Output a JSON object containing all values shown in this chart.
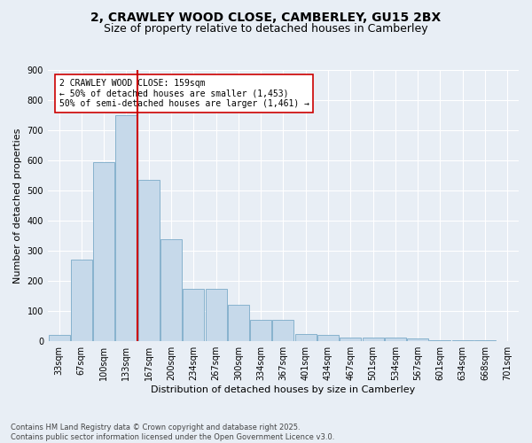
{
  "title_line1": "2, CRAWLEY WOOD CLOSE, CAMBERLEY, GU15 2BX",
  "title_line2": "Size of property relative to detached houses in Camberley",
  "xlabel": "Distribution of detached houses by size in Camberley",
  "ylabel": "Number of detached properties",
  "bar_values": [
    20,
    270,
    595,
    750,
    535,
    340,
    175,
    175,
    120,
    70,
    70,
    25,
    20,
    12,
    12,
    12,
    10,
    5,
    5,
    5,
    0
  ],
  "bin_labels": [
    "33sqm",
    "67sqm",
    "100sqm",
    "133sqm",
    "167sqm",
    "200sqm",
    "234sqm",
    "267sqm",
    "300sqm",
    "334sqm",
    "367sqm",
    "401sqm",
    "434sqm",
    "467sqm",
    "501sqm",
    "534sqm",
    "567sqm",
    "601sqm",
    "634sqm",
    "668sqm",
    "701sqm"
  ],
  "bar_color": "#c6d9ea",
  "bar_edge_color": "#7aaac8",
  "vline_x": 4,
  "vline_color": "#cc0000",
  "annotation_text": "2 CRAWLEY WOOD CLOSE: 159sqm\n← 50% of detached houses are smaller (1,453)\n50% of semi-detached houses are larger (1,461) →",
  "annotation_box_color": "#ffffff",
  "annotation_box_edge": "#cc0000",
  "ylim": [
    0,
    900
  ],
  "yticks": [
    0,
    100,
    200,
    300,
    400,
    500,
    600,
    700,
    800,
    900
  ],
  "bg_color": "#e8eef5",
  "plot_bg_color": "#e8eef5",
  "grid_color": "#ffffff",
  "footnote": "Contains HM Land Registry data © Crown copyright and database right 2025.\nContains public sector information licensed under the Open Government Licence v3.0.",
  "title_fontsize": 10,
  "subtitle_fontsize": 9,
  "axis_label_fontsize": 8,
  "tick_fontsize": 7,
  "annot_fontsize": 7,
  "footnote_fontsize": 6
}
